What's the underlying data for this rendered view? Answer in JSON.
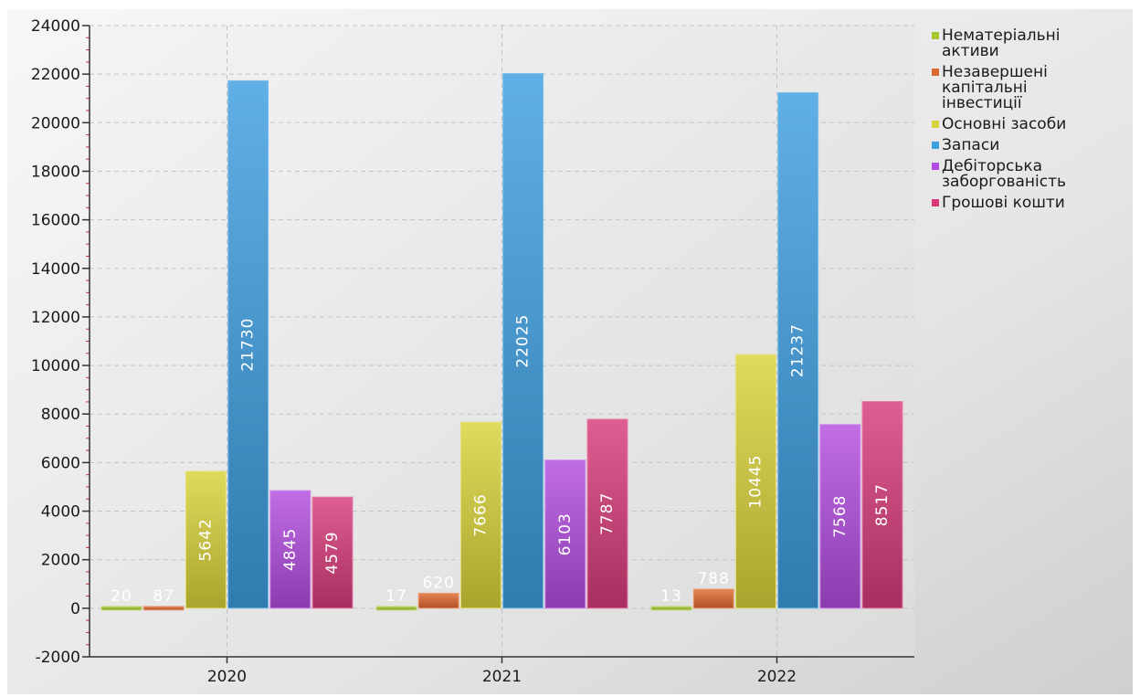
{
  "chart_data": {
    "type": "bar",
    "categories": [
      "2020",
      "2021",
      "2022"
    ],
    "ylim": [
      -2000,
      24000
    ],
    "yticks": [
      -2000,
      0,
      2000,
      4000,
      6000,
      8000,
      10000,
      12000,
      14000,
      16000,
      18000,
      20000,
      22000,
      24000
    ],
    "grid": true,
    "legend_position": "right",
    "series": [
      {
        "name": "Нематеріальні активи",
        "color": "#a6c832",
        "values": [
          20,
          17,
          13
        ]
      },
      {
        "name": "Незавершені капітальні інвестиції",
        "color": "#e0692f",
        "values": [
          87,
          620,
          788
        ]
      },
      {
        "name": "Основні засоби",
        "color": "#d9d23a",
        "values": [
          5642,
          7666,
          10445
        ]
      },
      {
        "name": "Запаси",
        "color": "#3d9ee0",
        "values": [
          21730,
          22025,
          21237
        ]
      },
      {
        "name": "Дебіторська заборгованість",
        "color": "#b34de0",
        "values": [
          4845,
          6103,
          7568
        ]
      },
      {
        "name": "Грошові кошти",
        "color": "#d83b7a",
        "values": [
          4579,
          7787,
          8517
        ]
      }
    ],
    "legend_lines": [
      [
        "Нематеріальні",
        "активи"
      ],
      [
        "Незавершені",
        "капітальні",
        "інвестиції"
      ],
      [
        "Основні засоби"
      ],
      [
        "Запаси"
      ],
      [
        "Дебіторська",
        "заборгованість"
      ],
      [
        "Грошові кошти"
      ]
    ]
  }
}
